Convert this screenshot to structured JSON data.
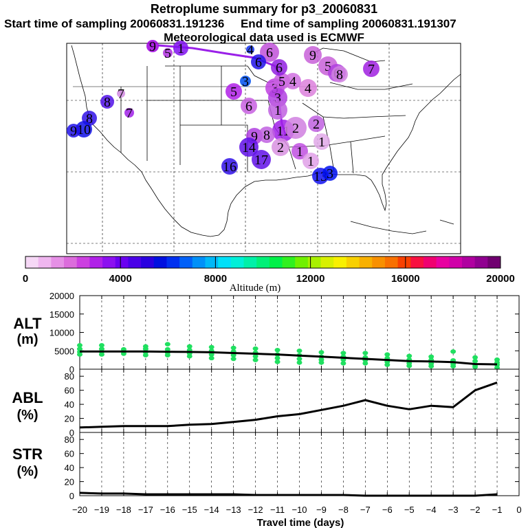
{
  "header": {
    "title": "Retroplume summary for p3_20060831",
    "start_label": "Start time of sampling 20060831.191236",
    "end_label": "End time of sampling 20060831.191307",
    "met_label": "Meteorological data used is ECMWF"
  },
  "colorbar": {
    "ticks": [
      "0",
      "4000",
      "8000",
      "12000",
      "16000",
      "20000"
    ],
    "label": "Altitude (m)",
    "colors": [
      "#f6d8f6",
      "#efb6ef",
      "#e690e6",
      "#dc6cdc",
      "#cc40e0",
      "#b020e8",
      "#8c10f0",
      "#6a00f0",
      "#4a00e8",
      "#2a00e0",
      "#0010e0",
      "#0030f0",
      "#0060f8",
      "#0090f8",
      "#00b8f8",
      "#00e0f8",
      "#00f0d8",
      "#00f0a8",
      "#00f078",
      "#00f048",
      "#30f020",
      "#70f000",
      "#a8f000",
      "#d8f000",
      "#f8f000",
      "#f8d000",
      "#f8b000",
      "#f89000",
      "#f87000",
      "#f84000",
      "#f81040",
      "#f00070",
      "#e800a0",
      "#d000a8",
      "#b000a0",
      "#900090",
      "#700070"
    ]
  },
  "map_markers": [
    {
      "t": "9",
      "c": "#a000e0"
    },
    {
      "t": "1",
      "c": "#8010f0"
    },
    {
      "t": "6",
      "c": "#c050d8"
    },
    {
      "t": "9",
      "c": "#c860d8"
    },
    {
      "t": "5",
      "c": "#c860d8"
    },
    {
      "t": "4",
      "c": "#1030f0"
    },
    {
      "t": "7",
      "c": "#a020e0"
    },
    {
      "t": "6",
      "c": "#b040e0"
    },
    {
      "t": "3",
      "c": "#0050f0"
    },
    {
      "t": "5",
      "c": "#b020e8"
    },
    {
      "t": "8",
      "c": "#5010e8"
    },
    {
      "t": "3",
      "c": "#c040e0"
    },
    {
      "t": "4",
      "c": "#dc80dc"
    },
    {
      "t": "5",
      "c": "#c860e0"
    },
    {
      "t": "4",
      "c": "#d070e0"
    },
    {
      "t": "6",
      "c": "#c860e0"
    },
    {
      "t": "8",
      "c": "#d080e0"
    },
    {
      "t": "7",
      "c": "#d088e0"
    },
    {
      "t": "5",
      "c": "#b030e0"
    },
    {
      "t": "6",
      "c": "#2010e8"
    },
    {
      "t": "6",
      "c": "#9020e0"
    },
    {
      "t": "3",
      "c": "#b040e0"
    },
    {
      "t": "1",
      "c": "#c060e0"
    },
    {
      "t": "8",
      "c": "#3010e8"
    },
    {
      "t": "7",
      "c": "#a020e8"
    },
    {
      "t": "2",
      "c": "#c060e0"
    },
    {
      "t": "10",
      "c": "#1010e8"
    },
    {
      "t": "9",
      "c": "#2010e8"
    },
    {
      "t": "11",
      "c": "#a020e8"
    },
    {
      "t": "9",
      "c": "#b040e0"
    },
    {
      "t": "8",
      "c": "#c060e0"
    },
    {
      "t": "2",
      "c": "#d080e0"
    },
    {
      "t": "14",
      "c": "#6010e8"
    },
    {
      "t": "2",
      "c": "#d890e0"
    },
    {
      "t": "1",
      "c": "#c050e0"
    },
    {
      "t": "17",
      "c": "#6010e8"
    },
    {
      "t": "1",
      "c": "#e0a0e8"
    },
    {
      "t": "1",
      "c": "#e0a8e8"
    },
    {
      "t": "16",
      "c": "#3010e8"
    },
    {
      "t": "13",
      "c": "#1010f0"
    },
    {
      "t": "3",
      "c": "#0010f0"
    }
  ],
  "alt_panel": {
    "label": "ALT",
    "unit": "(m)",
    "yticks": [
      "20000",
      "15000",
      "10000",
      "5000",
      "0"
    ]
  },
  "abl_panel": {
    "label": "ABL",
    "unit": "(%)",
    "yticks": [
      "80",
      "60",
      "40",
      "20",
      "0"
    ]
  },
  "str_panel": {
    "label": "STR",
    "unit": "(%)",
    "yticks": [
      "80",
      "60",
      "40",
      "20",
      "0"
    ]
  },
  "xaxis": {
    "ticks": [
      "−20",
      "−19",
      "−18",
      "−17",
      "−16",
      "−15",
      "−14",
      "−13",
      "−12",
      "−11",
      "−10",
      "−9",
      "−8",
      "−7",
      "−6",
      "−5",
      "−4",
      "−3",
      "−2",
      "−1",
      "0"
    ],
    "label": "Travel time (days)"
  },
  "chart_data": [
    {
      "type": "line",
      "title": "ALT",
      "ylabel": "ALT (m)",
      "xlabel": "Travel time (days)",
      "ylim": [
        0,
        20000
      ],
      "xlim": [
        -20,
        0
      ],
      "x": [
        -20,
        -19,
        -18,
        -17,
        -16,
        -15,
        -14,
        -13,
        -12,
        -11,
        -10,
        -9,
        -8,
        -7,
        -6,
        -5,
        -4,
        -3,
        -2,
        -1
      ],
      "series": [
        {
          "name": "median altitude",
          "values": [
            4800,
            4800,
            4800,
            4800,
            4750,
            4700,
            4600,
            4400,
            4200,
            4000,
            3700,
            3400,
            3100,
            2800,
            2500,
            2200,
            2100,
            1900,
            1400,
            1300
          ]
        }
      ],
      "scatter_spread": [
        {
          "x": -20,
          "y": [
            4000,
            4700,
            5500,
            6500
          ]
        },
        {
          "x": -19,
          "y": [
            4000,
            4700,
            5500,
            6500
          ]
        },
        {
          "x": -18,
          "y": [
            4200,
            4800,
            5400
          ]
        },
        {
          "x": -17,
          "y": [
            3800,
            4600,
            5500,
            6200
          ]
        },
        {
          "x": -16,
          "y": [
            3800,
            4500,
            5400,
            6800
          ]
        },
        {
          "x": -15,
          "y": [
            3500,
            4300,
            5200,
            6200
          ]
        },
        {
          "x": -14,
          "y": [
            3000,
            4000,
            5000,
            6000
          ]
        },
        {
          "x": -13,
          "y": [
            2800,
            3800,
            4800,
            5800
          ]
        },
        {
          "x": -12,
          "y": [
            2500,
            3500,
            4500,
            5600
          ]
        },
        {
          "x": -11,
          "y": [
            2000,
            3000,
            4000,
            5200
          ]
        },
        {
          "x": -10,
          "y": [
            1800,
            2800,
            3800,
            5000
          ]
        },
        {
          "x": -9,
          "y": [
            1800,
            2600,
            3400,
            4600
          ]
        },
        {
          "x": -8,
          "y": [
            1600,
            2600,
            3400,
            4400
          ]
        },
        {
          "x": -7,
          "y": [
            1600,
            2500,
            3200,
            4400
          ]
        },
        {
          "x": -6,
          "y": [
            1200,
            2000,
            3000,
            4000
          ]
        },
        {
          "x": -5,
          "y": [
            900,
            1600,
            2600,
            3600
          ]
        },
        {
          "x": -4,
          "y": [
            800,
            1500,
            2500,
            3400
          ]
        },
        {
          "x": -3,
          "y": [
            800,
            1400,
            2400,
            4800
          ]
        },
        {
          "x": -2,
          "y": [
            600,
            1200,
            2200,
            3200
          ]
        },
        {
          "x": -1,
          "y": [
            400,
            1200,
            1800,
            2600
          ]
        }
      ]
    },
    {
      "type": "line",
      "title": "ABL",
      "ylabel": "ABL (%)",
      "xlabel": "Travel time (days)",
      "ylim": [
        0,
        90
      ],
      "xlim": [
        -20,
        0
      ],
      "x": [
        -20,
        -19,
        -18,
        -17,
        -16,
        -15,
        -14,
        -13,
        -12,
        -11,
        -10,
        -9,
        -8,
        -7,
        -6,
        -5,
        -4,
        -3,
        -2,
        -1
      ],
      "series": [
        {
          "name": "ABL fraction",
          "values": [
            7,
            8,
            9,
            9,
            9,
            11,
            12,
            15,
            18,
            23,
            26,
            32,
            38,
            46,
            38,
            33,
            38,
            36,
            60,
            71
          ]
        }
      ]
    },
    {
      "type": "line",
      "title": "STR",
      "ylabel": "STR (%)",
      "xlabel": "Travel time (days)",
      "ylim": [
        0,
        90
      ],
      "xlim": [
        -20,
        0
      ],
      "x": [
        -20,
        -19,
        -18,
        -17,
        -16,
        -15,
        -14,
        -13,
        -12,
        -11,
        -10,
        -9,
        -8,
        -7,
        -6,
        -5,
        -4,
        -3,
        -2,
        -1
      ],
      "series": [
        {
          "name": "stratospheric fraction",
          "values": [
            4,
            3,
            3,
            2,
            2,
            2,
            2,
            2,
            1,
            1,
            1,
            1,
            1,
            0,
            0,
            0,
            0,
            0,
            0,
            2
          ]
        }
      ]
    }
  ]
}
